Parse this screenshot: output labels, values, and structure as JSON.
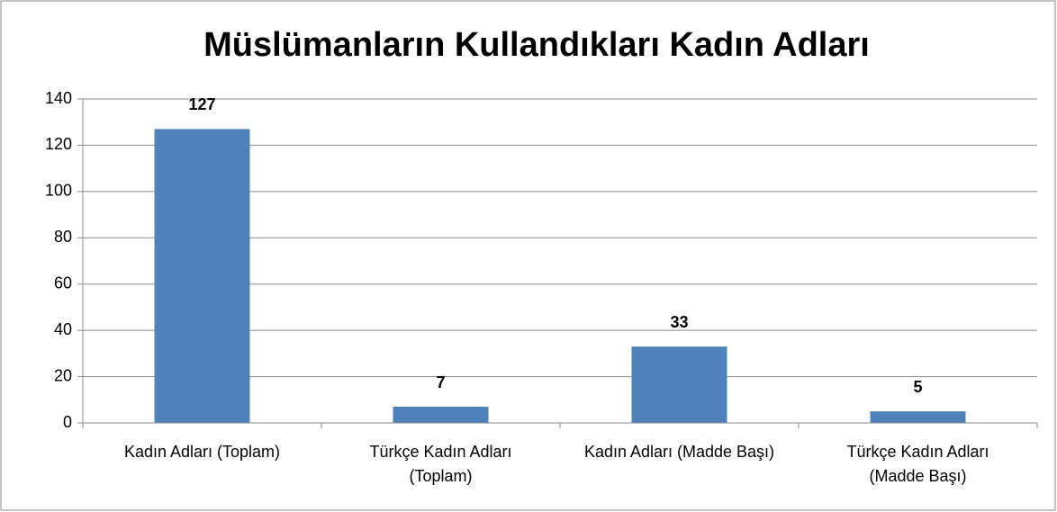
{
  "chart_data": {
    "type": "bar",
    "title": "Müslümanların Kullandıkları Kadın Adları",
    "categories": [
      "Kadın Adları (Toplam)",
      "Türkçe Kadın Adları (Toplam)",
      "Kadın Adları (Madde Başı)",
      "Türkçe Kadın Adları (Madde Başı)"
    ],
    "values": [
      127,
      7,
      33,
      5
    ],
    "color": "#4f81bd",
    "ylim": [
      0,
      140
    ],
    "yticks": [
      0,
      20,
      40,
      60,
      80,
      100,
      120,
      140
    ],
    "grid": true
  }
}
